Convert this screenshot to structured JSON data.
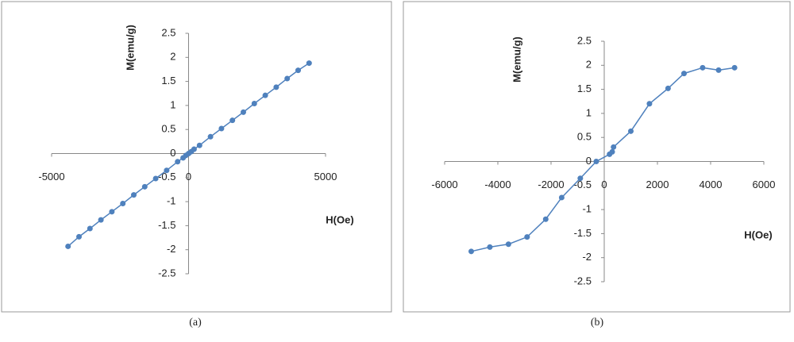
{
  "chart_data": [
    {
      "type": "line",
      "ylabel": "M(emu/g)",
      "xlabel": "H(Oe)",
      "caption": "(a)",
      "x": [
        -4400,
        -4000,
        -3600,
        -3200,
        -2800,
        -2400,
        -2000,
        -1600,
        -1200,
        -800,
        -400,
        -200,
        -100,
        0,
        100,
        200,
        400,
        800,
        1200,
        1600,
        2000,
        2400,
        2800,
        3200,
        3600,
        4000,
        4400
      ],
      "series": [
        {
          "color": "#4f81bd",
          "values": [
            -1.93,
            -1.73,
            -1.56,
            -1.38,
            -1.21,
            -1.04,
            -0.86,
            -0.69,
            -0.52,
            -0.35,
            -0.17,
            -0.09,
            -0.04,
            0,
            0.04,
            0.09,
            0.17,
            0.35,
            0.52,
            0.69,
            0.86,
            1.04,
            1.21,
            1.38,
            1.56,
            1.73,
            1.88
          ]
        }
      ],
      "xlim": [
        -5000,
        5000
      ],
      "xticks": [
        -5000,
        0,
        5000
      ],
      "ylim": [
        -2.5,
        2.5
      ],
      "yticks": [
        -2.5,
        -2,
        -1.5,
        -1,
        -0.5,
        0,
        0.5,
        1,
        1.5,
        2,
        2.5
      ]
    },
    {
      "type": "line",
      "ylabel": "M(emu/g)",
      "xlabel": "H(Oe)",
      "caption": "(b)",
      "x": [
        -5000,
        -4300,
        -3600,
        -2900,
        -2200,
        -1600,
        -900,
        -300,
        200,
        300,
        350,
        1000,
        1700,
        2400,
        3000,
        3700,
        4300,
        4900
      ],
      "series": [
        {
          "color": "#4f81bd",
          "values": [
            -1.87,
            -1.78,
            -1.72,
            -1.57,
            -1.2,
            -0.75,
            -0.35,
            0,
            0.15,
            0.2,
            0.3,
            0.63,
            1.2,
            1.52,
            1.83,
            1.95,
            1.9,
            1.95
          ]
        }
      ],
      "xlim": [
        -6000,
        6000
      ],
      "xticks": [
        -6000,
        -4000,
        -2000,
        0,
        2000,
        4000,
        6000
      ],
      "ylim": [
        -2.5,
        2.5
      ],
      "yticks": [
        -2.5,
        -2,
        -1.5,
        -1,
        -0.5,
        0,
        0.5,
        1,
        1.5,
        2,
        2.5
      ]
    }
  ]
}
